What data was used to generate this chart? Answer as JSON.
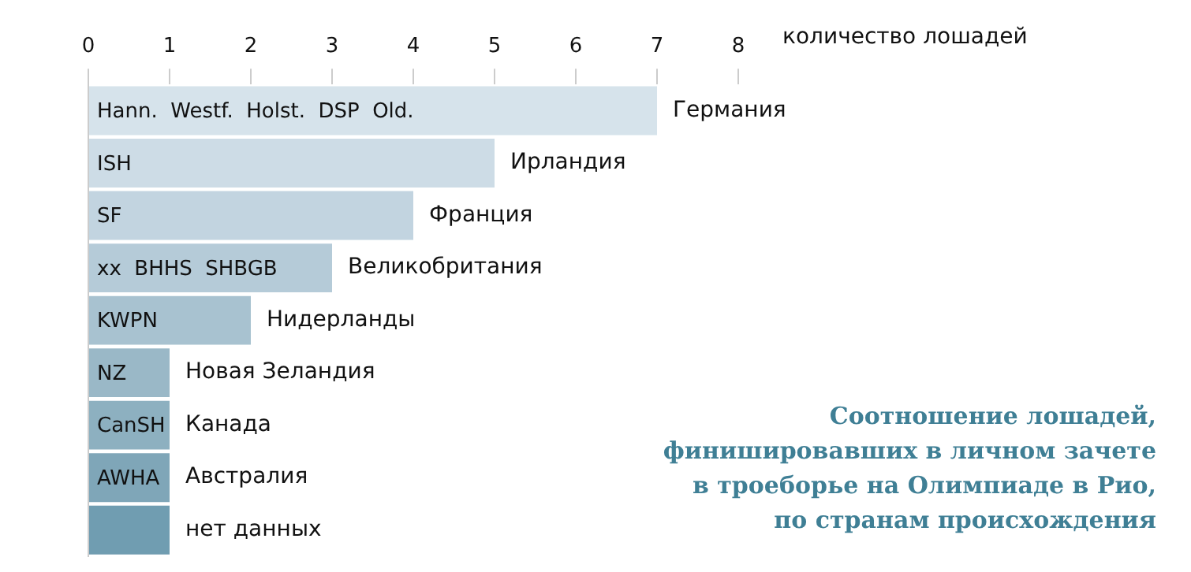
{
  "chart_data": {
    "type": "bar",
    "orientation": "horizontal",
    "title": "Соотношение лошадей,\nфинишировавших в личном зачете\nв троеборье на Олимпиаде в Рио,\nпо странам происхождения",
    "xlabel": "количество лошадей",
    "categories": [
      "Германия",
      "Ирландия",
      "Франция",
      "Великобритания",
      "Нидерланды",
      "Новая Зеландия",
      "Канада",
      "Австралия",
      "нет данных"
    ],
    "values": [
      7,
      5,
      4,
      3,
      2,
      1,
      1,
      1,
      1
    ],
    "colors": [
      "#d6e3eb",
      "#cddce6",
      "#c2d4e0",
      "#b5cbd8",
      "#a8c2d0",
      "#9ab8c7",
      "#8db0c0",
      "#7fa6b8",
      "#709db1"
    ],
    "xlim": [
      0,
      8
    ],
    "xticks": [
      0,
      1,
      2,
      3,
      4,
      5,
      6,
      7,
      8
    ],
    "grid": false,
    "legend": false,
    "annotations": [
      {
        "text": "Hann.  Westf.  Holst.  DSP  Old.",
        "y": "Германия"
      },
      {
        "text": "ISH",
        "y": "Ирландия"
      },
      {
        "text": "SF",
        "y": "Франция"
      },
      {
        "text": "xx  BHHS  SHBGB",
        "y": "Великобритания"
      },
      {
        "text": "KWPN",
        "y": "Нидерланды"
      },
      {
        "text": "NZ",
        "y": "Новая Зеландия"
      },
      {
        "text": "CanSH",
        "y": "Канада"
      },
      {
        "text": "AWHA",
        "y": "Австралия"
      }
    ]
  }
}
